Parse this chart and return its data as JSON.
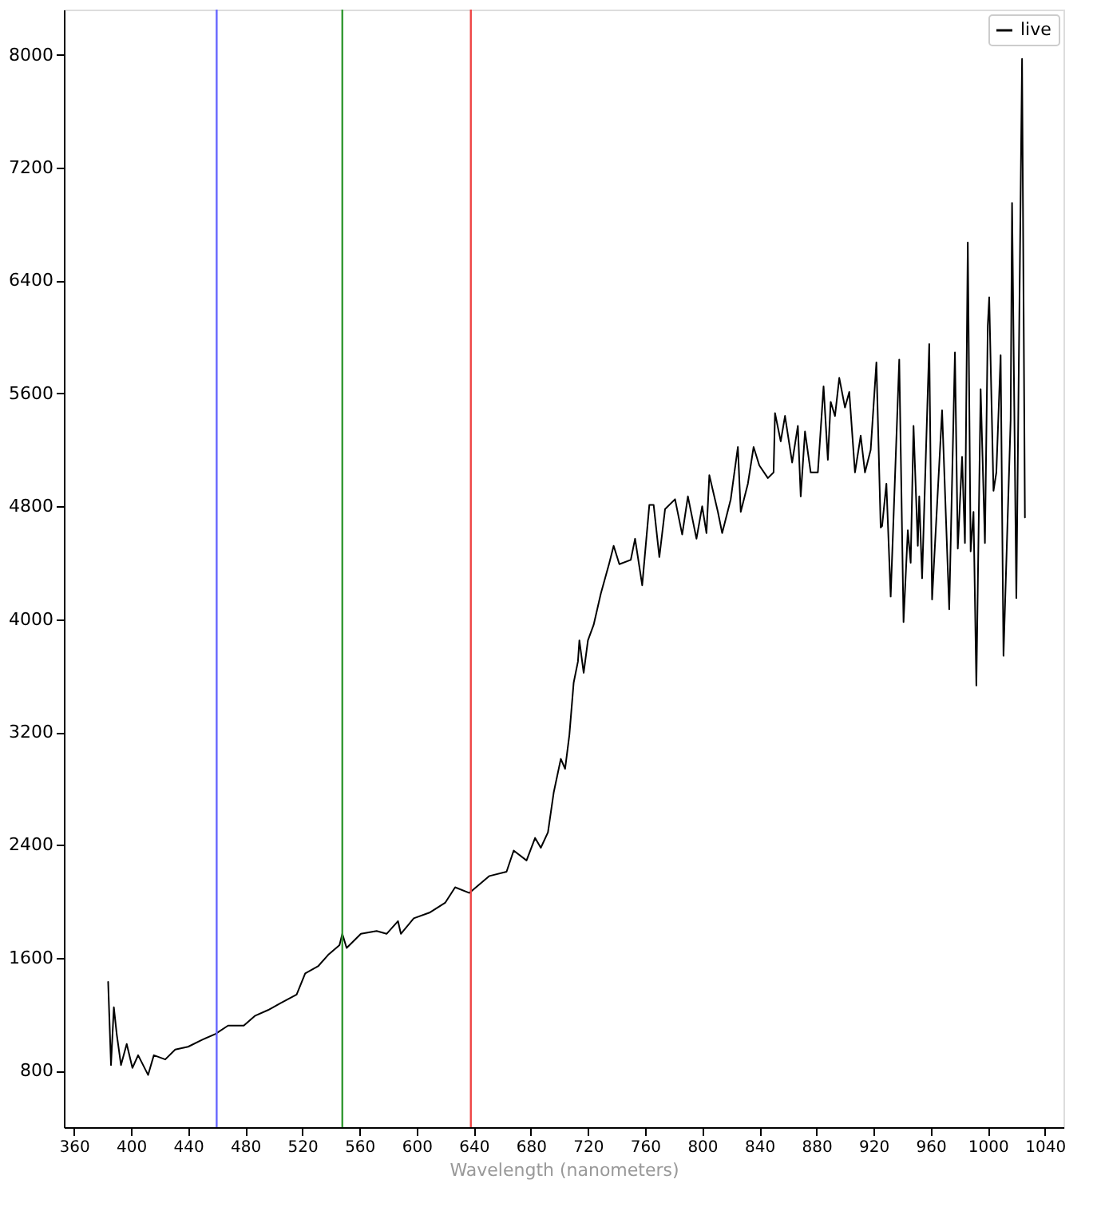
{
  "chart_data": {
    "type": "line",
    "xlabel": "Wavelength (nanometers)",
    "xlim": [
      353,
      1053
    ],
    "ylim": [
      400,
      8320
    ],
    "xticks": [
      360,
      400,
      440,
      480,
      520,
      560,
      600,
      640,
      680,
      720,
      760,
      800,
      840,
      880,
      920,
      960,
      1000,
      1040
    ],
    "yticks": [
      800,
      1600,
      2400,
      3200,
      4000,
      4800,
      5600,
      6400,
      7200,
      8000
    ],
    "grid": false,
    "legend": "top right",
    "marker": "none",
    "line_style": "solid",
    "ref_lines": [
      {
        "axis": "x",
        "value": 460,
        "color": "#6666ff"
      },
      {
        "axis": "x",
        "value": 548,
        "color": "#339933"
      },
      {
        "axis": "x",
        "value": 638,
        "color": "#ee4444"
      }
    ],
    "series": [
      {
        "name": "live",
        "color": "#000000",
        "x": [
          384,
          386,
          388,
          390,
          393,
          397,
          401,
          405,
          412,
          416,
          424,
          431,
          440,
          450,
          459,
          468,
          479,
          487,
          496,
          505,
          516,
          522,
          531,
          538,
          546,
          548,
          551,
          561,
          572,
          579,
          587,
          589,
          598,
          609,
          620,
          627,
          637,
          651,
          663,
          668,
          677,
          683,
          687,
          692,
          696,
          701,
          704,
          707,
          710,
          713,
          714,
          717,
          720,
          724,
          729,
          735,
          738,
          742,
          750,
          753,
          758,
          763,
          766,
          770,
          774,
          781,
          786,
          790,
          796,
          800,
          803,
          805,
          811,
          814,
          820,
          825,
          827,
          832,
          836,
          840,
          846,
          850,
          851,
          855,
          858,
          863,
          867,
          869,
          872,
          876,
          881,
          885,
          888,
          890,
          893,
          896,
          900,
          903,
          907,
          911,
          914,
          918,
          922,
          925,
          926,
          929,
          932,
          938,
          941,
          944,
          946,
          948,
          951,
          952,
          954,
          959,
          961,
          968,
          973,
          977,
          979,
          982,
          984,
          986,
          988,
          990,
          992,
          995,
          998,
          1000,
          1001,
          1004,
          1006,
          1009,
          1011,
          1016,
          1017,
          1020,
          1024,
          1026
        ],
        "values": [
          1430,
          840,
          1250,
          1060,
          840,
          990,
          820,
          910,
          770,
          910,
          880,
          950,
          970,
          1020,
          1060,
          1120,
          1120,
          1190,
          1230,
          1280,
          1340,
          1490,
          1540,
          1620,
          1690,
          1770,
          1670,
          1770,
          1790,
          1770,
          1860,
          1770,
          1880,
          1920,
          1990,
          2100,
          2060,
          2180,
          2210,
          2360,
          2290,
          2450,
          2380,
          2490,
          2770,
          3010,
          2940,
          3180,
          3550,
          3700,
          3850,
          3620,
          3850,
          3960,
          4180,
          4400,
          4520,
          4390,
          4420,
          4570,
          4240,
          4810,
          4810,
          4440,
          4780,
          4850,
          4600,
          4870,
          4570,
          4800,
          4610,
          5020,
          4760,
          4610,
          4850,
          5220,
          4760,
          4960,
          5220,
          5090,
          5000,
          5040,
          5460,
          5260,
          5440,
          5110,
          5370,
          4870,
          5330,
          5040,
          5040,
          5650,
          5130,
          5540,
          5440,
          5710,
          5500,
          5610,
          5040,
          5300,
          5040,
          5200,
          5820,
          4650,
          4660,
          4960,
          4160,
          5840,
          3980,
          4630,
          4400,
          5370,
          4520,
          4870,
          4290,
          5950,
          4140,
          5480,
          4070,
          5890,
          4500,
          5150,
          4540,
          6670,
          4480,
          4760,
          3530,
          5630,
          4540,
          6080,
          6280,
          4910,
          5040,
          5870,
          3740,
          5410,
          6950,
          4150,
          7970,
          4720
        ]
      }
    ]
  }
}
